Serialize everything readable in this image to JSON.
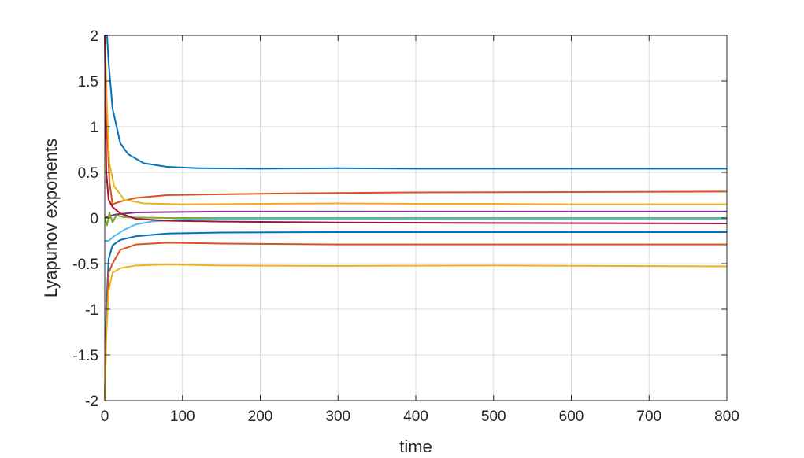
{
  "chart_data": {
    "type": "line",
    "title": "",
    "xlabel": "time",
    "ylabel": "Lyapunov exponents",
    "xlim": [
      0,
      800
    ],
    "ylim": [
      -2,
      2
    ],
    "xticks": [
      0,
      100,
      200,
      300,
      400,
      500,
      600,
      700,
      800
    ],
    "yticks": [
      -2,
      -1.5,
      -1,
      -0.5,
      0,
      0.5,
      1,
      1.5,
      2
    ],
    "grid": true,
    "legend": "none",
    "series": [
      {
        "color": "#0072BD",
        "points": [
          [
            0,
            2
          ],
          [
            3,
            2
          ],
          [
            5,
            1.7
          ],
          [
            10,
            1.2
          ],
          [
            20,
            0.82
          ],
          [
            30,
            0.7
          ],
          [
            50,
            0.6
          ],
          [
            80,
            0.56
          ],
          [
            120,
            0.545
          ],
          [
            200,
            0.54
          ],
          [
            300,
            0.545
          ],
          [
            400,
            0.54
          ],
          [
            500,
            0.54
          ],
          [
            600,
            0.54
          ],
          [
            700,
            0.54
          ],
          [
            800,
            0.54
          ]
        ]
      },
      {
        "color": "#D95319",
        "points": [
          [
            0,
            2
          ],
          [
            3,
            1.0
          ],
          [
            6,
            0.4
          ],
          [
            10,
            0.15
          ],
          [
            20,
            0.18
          ],
          [
            40,
            0.22
          ],
          [
            80,
            0.25
          ],
          [
            150,
            0.26
          ],
          [
            250,
            0.27
          ],
          [
            400,
            0.28
          ],
          [
            600,
            0.285
          ],
          [
            800,
            0.29
          ]
        ]
      },
      {
        "color": "#EDB120",
        "points": [
          [
            0,
            2
          ],
          [
            3,
            1.2
          ],
          [
            6,
            0.6
          ],
          [
            12,
            0.35
          ],
          [
            25,
            0.2
          ],
          [
            50,
            0.16
          ],
          [
            100,
            0.15
          ],
          [
            200,
            0.155
          ],
          [
            300,
            0.16
          ],
          [
            400,
            0.155
          ],
          [
            500,
            0.155
          ],
          [
            600,
            0.15
          ],
          [
            700,
            0.15
          ],
          [
            800,
            0.15
          ]
        ]
      },
      {
        "color": "#7E2F8E",
        "points": [
          [
            0,
            0
          ],
          [
            5,
            0.02
          ],
          [
            15,
            0.04
          ],
          [
            40,
            0.06
          ],
          [
            80,
            0.065
          ],
          [
            150,
            0.07
          ],
          [
            300,
            0.07
          ],
          [
            500,
            0.07
          ],
          [
            800,
            0.07
          ]
        ]
      },
      {
        "color": "#77AC30",
        "points": [
          [
            0,
            0
          ],
          [
            3,
            -0.08
          ],
          [
            6,
            0.06
          ],
          [
            10,
            -0.05
          ],
          [
            15,
            0.03
          ],
          [
            25,
            0.01
          ],
          [
            40,
            0.005
          ],
          [
            80,
            0.0
          ],
          [
            200,
            0.0
          ],
          [
            400,
            0.0
          ],
          [
            800,
            0.0
          ]
        ]
      },
      {
        "color": "#4DBEEE",
        "points": [
          [
            0,
            -0.25
          ],
          [
            5,
            -0.25
          ],
          [
            12,
            -0.2
          ],
          [
            25,
            -0.13
          ],
          [
            40,
            -0.07
          ],
          [
            60,
            -0.04
          ],
          [
            90,
            -0.02
          ],
          [
            150,
            -0.01
          ],
          [
            300,
            -0.01
          ],
          [
            500,
            -0.01
          ],
          [
            800,
            -0.01
          ]
        ]
      },
      {
        "color": "#A2142F",
        "points": [
          [
            0,
            2
          ],
          [
            2,
            0.5
          ],
          [
            5,
            0.2
          ],
          [
            10,
            0.12
          ],
          [
            20,
            0.05
          ],
          [
            40,
            -0.01
          ],
          [
            80,
            -0.03
          ],
          [
            150,
            -0.04
          ],
          [
            300,
            -0.05
          ],
          [
            500,
            -0.055
          ],
          [
            800,
            -0.06
          ]
        ]
      },
      {
        "color": "#0072BD",
        "points": [
          [
            0,
            -2
          ],
          [
            2,
            -1.0
          ],
          [
            5,
            -0.45
          ],
          [
            10,
            -0.3
          ],
          [
            20,
            -0.24
          ],
          [
            40,
            -0.2
          ],
          [
            80,
            -0.17
          ],
          [
            150,
            -0.16
          ],
          [
            300,
            -0.155
          ],
          [
            500,
            -0.155
          ],
          [
            800,
            -0.155
          ]
        ]
      },
      {
        "color": "#D95319",
        "points": [
          [
            0,
            -2
          ],
          [
            2,
            -1.2
          ],
          [
            5,
            -0.6
          ],
          [
            10,
            -0.5
          ],
          [
            20,
            -0.35
          ],
          [
            40,
            -0.29
          ],
          [
            80,
            -0.27
          ],
          [
            150,
            -0.28
          ],
          [
            300,
            -0.29
          ],
          [
            500,
            -0.29
          ],
          [
            800,
            -0.29
          ]
        ]
      },
      {
        "color": "#EDB120",
        "points": [
          [
            0,
            -2
          ],
          [
            2,
            -1.3
          ],
          [
            5,
            -0.8
          ],
          [
            10,
            -0.6
          ],
          [
            20,
            -0.55
          ],
          [
            40,
            -0.52
          ],
          [
            80,
            -0.51
          ],
          [
            150,
            -0.52
          ],
          [
            300,
            -0.525
          ],
          [
            500,
            -0.52
          ],
          [
            800,
            -0.53
          ]
        ]
      }
    ]
  }
}
